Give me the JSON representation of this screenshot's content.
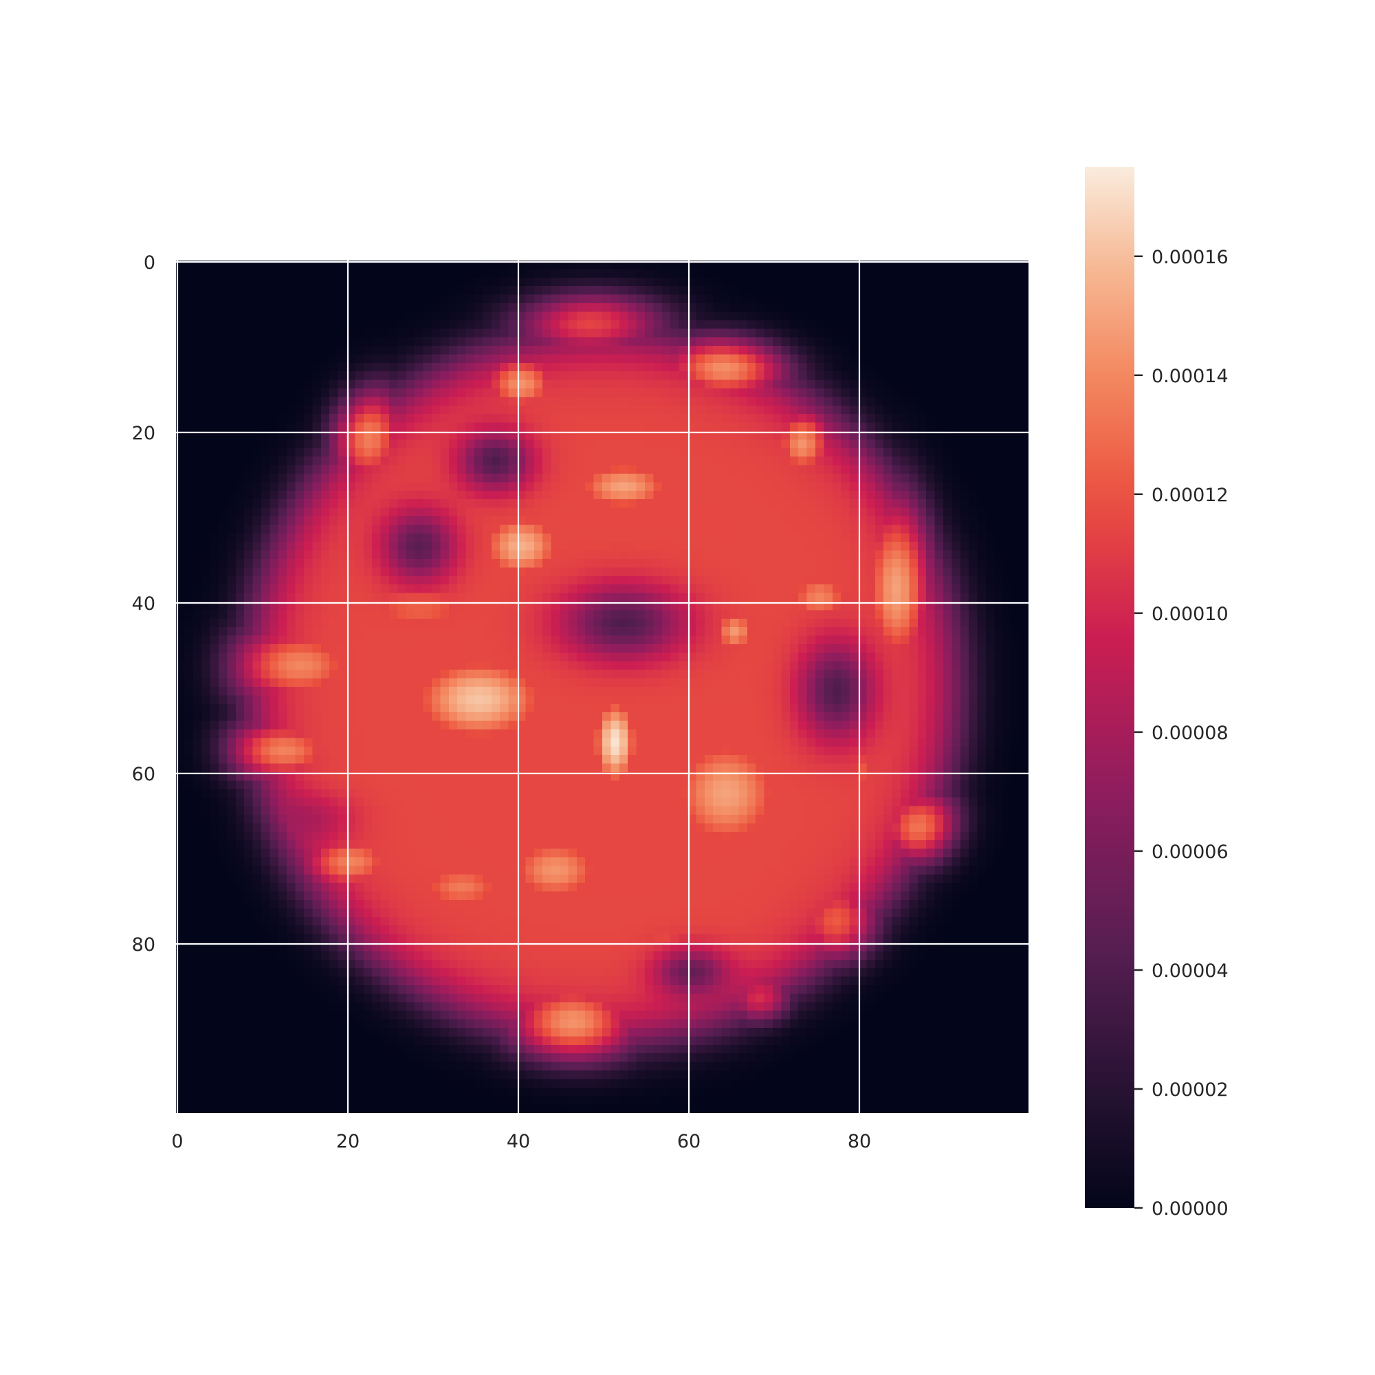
{
  "chart_data": {
    "type": "heatmap",
    "title": "",
    "xlabel": "",
    "ylabel": "",
    "grid": true,
    "image_shape": [
      100,
      100
    ],
    "x_range": [
      0,
      99
    ],
    "y_range": [
      0,
      99
    ],
    "y_axis_inverted": true,
    "xticks": [
      0,
      20,
      40,
      60,
      80
    ],
    "yticks": [
      0,
      20,
      40,
      60,
      80
    ],
    "colormap": "rocket",
    "colorbar": {
      "vmin": 0.0,
      "vmax": 0.000175,
      "ticks": [
        0.0,
        2e-05,
        4e-05,
        6e-05,
        8e-05,
        0.0001,
        0.00012,
        0.00014,
        0.00016
      ],
      "tick_labels": [
        "0.00000",
        "0.00002",
        "0.00004",
        "0.00006",
        "0.00008",
        "0.00010",
        "0.00012",
        "0.00014",
        "0.00016"
      ]
    },
    "blobs": [
      {
        "cx": 48,
        "cy": 6,
        "sx": 7,
        "sy": 3.5,
        "value": 0.000135
      },
      {
        "cx": 40,
        "cy": 14,
        "sx": 4,
        "sy": 3,
        "value": 0.000145
      },
      {
        "cx": 64,
        "cy": 12,
        "sx": 6,
        "sy": 3,
        "value": 0.000148
      },
      {
        "cx": 73,
        "cy": 21,
        "sx": 3,
        "sy": 3.5,
        "value": 0.000145
      },
      {
        "cx": 22,
        "cy": 20,
        "sx": 3.5,
        "sy": 5,
        "value": 0.000142
      },
      {
        "cx": 52,
        "cy": 26,
        "sx": 6,
        "sy": 3,
        "value": 0.00015
      },
      {
        "cx": 40,
        "cy": 33,
        "sx": 5,
        "sy": 4,
        "value": 0.000155
      },
      {
        "cx": 84,
        "cy": 38,
        "sx": 3.5,
        "sy": 9,
        "value": 0.00015
      },
      {
        "cx": 75,
        "cy": 39,
        "sx": 4,
        "sy": 3,
        "value": 0.00014
      },
      {
        "cx": 65,
        "cy": 43,
        "sx": 2.5,
        "sy": 2.5,
        "value": 0.00015
      },
      {
        "cx": 65,
        "cy": 30,
        "sx": 5,
        "sy": 4,
        "value": 0.00011
      },
      {
        "cx": 14,
        "cy": 47,
        "sx": 7,
        "sy": 4,
        "value": 0.00014
      },
      {
        "cx": 35,
        "cy": 51,
        "sx": 8,
        "sy": 5,
        "value": 0.000162
      },
      {
        "cx": 51,
        "cy": 56,
        "sx": 2.5,
        "sy": 5,
        "value": 0.000172
      },
      {
        "cx": 64,
        "cy": 62,
        "sx": 7,
        "sy": 7,
        "value": 0.00015
      },
      {
        "cx": 12,
        "cy": 57,
        "sx": 6,
        "sy": 3,
        "value": 0.00014
      },
      {
        "cx": 20,
        "cy": 70,
        "sx": 5,
        "sy": 3,
        "value": 0.00014
      },
      {
        "cx": 44,
        "cy": 71,
        "sx": 6,
        "sy": 4,
        "value": 0.000145
      },
      {
        "cx": 33,
        "cy": 73,
        "sx": 6,
        "sy": 3,
        "value": 0.000135
      },
      {
        "cx": 87,
        "cy": 66,
        "sx": 4,
        "sy": 3.5,
        "value": 0.00014
      },
      {
        "cx": 77,
        "cy": 77,
        "sx": 4,
        "sy": 4,
        "value": 0.000125
      },
      {
        "cx": 46,
        "cy": 89,
        "sx": 6,
        "sy": 4,
        "value": 0.000148
      },
      {
        "cx": 68,
        "cy": 86,
        "sx": 3,
        "sy": 2.5,
        "value": 0.00011
      },
      {
        "cx": 80,
        "cy": 59,
        "sx": 2,
        "sy": 3,
        "value": 0.000125
      },
      {
        "cx": 28,
        "cy": 40,
        "sx": 8,
        "sy": 4,
        "value": 0.00013
      },
      {
        "cx": 57,
        "cy": 79,
        "sx": 5,
        "sy": 3,
        "value": 0.00012
      }
    ],
    "holes": [
      {
        "cx": 37,
        "cy": 23,
        "sx": 3,
        "sy": 2.5,
        "value": 4e-05
      },
      {
        "cx": 28,
        "cy": 33,
        "sx": 3,
        "sy": 3,
        "value": 4.5e-05
      },
      {
        "cx": 52,
        "cy": 42,
        "sx": 5,
        "sy": 3,
        "value": 4e-05
      },
      {
        "cx": 77,
        "cy": 50,
        "sx": 3,
        "sy": 4,
        "value": 4e-05
      },
      {
        "cx": 14,
        "cy": 65,
        "sx": 4,
        "sy": 2,
        "value": 8e-05
      },
      {
        "cx": 60,
        "cy": 83,
        "sx": 3,
        "sy": 2,
        "value": 5e-05
      }
    ]
  }
}
